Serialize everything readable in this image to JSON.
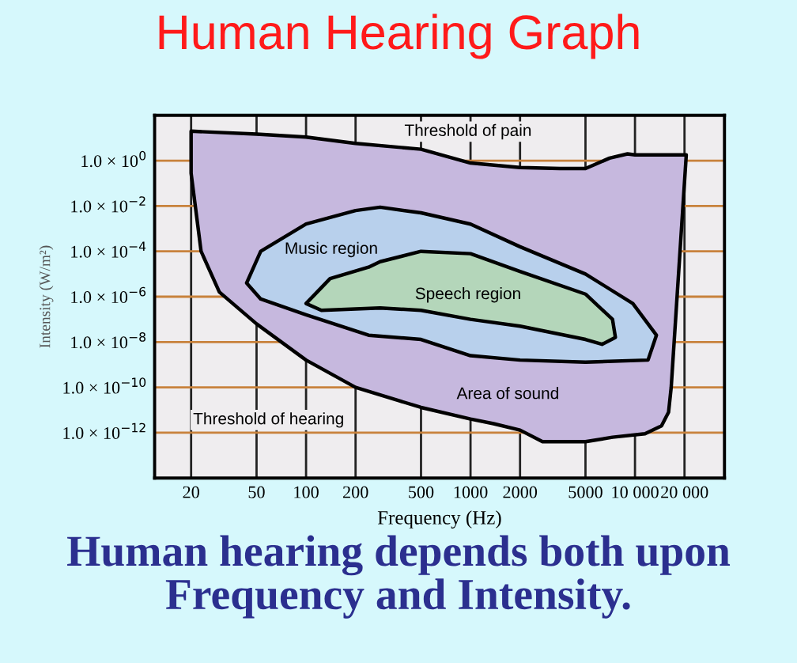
{
  "chart_data": {
    "type": "area",
    "title": "Human Hearing Graph",
    "xlabel": "Frequency (Hz)",
    "ylabel": "Intensity (W/m²)",
    "xlim": [
      12,
      35000
    ],
    "xticks": [
      20,
      50,
      100,
      200,
      500,
      1000,
      2000,
      5000,
      {
        "value": 10000,
        "label": "10 000"
      },
      {
        "value": 20000,
        "label": "20 000"
      }
    ],
    "ylim": [
      1e-14,
      100
    ],
    "yticks": [
      {
        "value": 1,
        "label": "1.0 × 10$^{0}$"
      },
      {
        "value": 0.01,
        "label": "1.0 × 10$^{−2}$"
      },
      {
        "value": 0.0001,
        "label": "1.0 × 10$^{−4}$"
      },
      {
        "value": 1e-06,
        "label": "1.0 × 10$^{−6}$"
      },
      {
        "value": 1e-08,
        "label": "1.0 × 10$^{−8}$"
      },
      {
        "value": 1e-10,
        "label": "1.0 × 10$^{−10}$"
      },
      {
        "value": 1e-12,
        "label": "1.0 × 10$^{−12}$"
      }
    ],
    "log": "xy",
    "grid": true,
    "legend": false,
    "series": [
      {
        "color": "#c6b8de",
        "x": [
          20,
          50,
          100,
          200,
          500,
          1000,
          2000,
          3500,
          5000,
          7000,
          9000,
          10000,
          20000,
          20500,
          16600,
          16000,
          14500,
          11500,
          7300,
          5000,
          2740,
          2000,
          1380,
          1000,
          500,
          200,
          100,
          50,
          29.7,
          23,
          20,
          20
        ],
        "values": [
          20,
          15,
          11,
          5.8,
          3.2,
          0.79,
          0.5,
          0.45,
          0.45,
          1.3,
          2,
          1.8,
          1.8,
          1.8,
          1e-10,
          8e-12,
          2e-12,
          9e-13,
          6.3e-13,
          4e-13,
          4e-13,
          1.3e-12,
          2.5e-12,
          4e-12,
          1.3e-11,
          1e-10,
          1.6e-09,
          6.3e-08,
          1.6e-06,
          0.0001,
          0.28,
          20
        ]
      },
      {
        "color": "#b8d0ec",
        "x": [
          43.5,
          53,
          100,
          200,
          282,
          500,
          1000,
          2000,
          5000,
          9700,
          13500,
          12000,
          5000,
          2000,
          1000,
          500,
          240,
          100,
          53,
          43.5
        ],
        "values": [
          4e-06,
          0.0001,
          0.0016,
          0.0063,
          0.0089,
          0.005,
          0.0016,
          0.00016,
          1e-05,
          5e-07,
          2e-08,
          1.6e-09,
          1.3e-09,
          1.6e-09,
          2.5e-09,
          1.3e-08,
          2e-08,
          1.6e-07,
          7.9e-07,
          4e-06
        ]
      },
      {
        "color": "#b4d6ba",
        "x": [
          100,
          140,
          240,
          282,
          500,
          1000,
          2000,
          5000,
          7300,
          7600,
          6300,
          5000,
          2000,
          1000,
          500,
          282,
          124,
          100
        ],
        "values": [
          5e-07,
          6.3e-06,
          2e-05,
          3.5e-05,
          0.0001,
          7.9e-05,
          1.3e-05,
          1.3e-06,
          1e-07,
          1.6e-08,
          7.9e-09,
          1.3e-08,
          5e-08,
          1e-07,
          2.5e-07,
          3.2e-07,
          2.5e-07,
          5e-07
        ]
      }
    ],
    "annotations": [
      "Threshold of pain",
      "Music region",
      "Speech region",
      "Area of sound",
      "Threshold of hearing",
      "Human hearing depends both upon Frequency and Intensity."
    ]
  }
}
